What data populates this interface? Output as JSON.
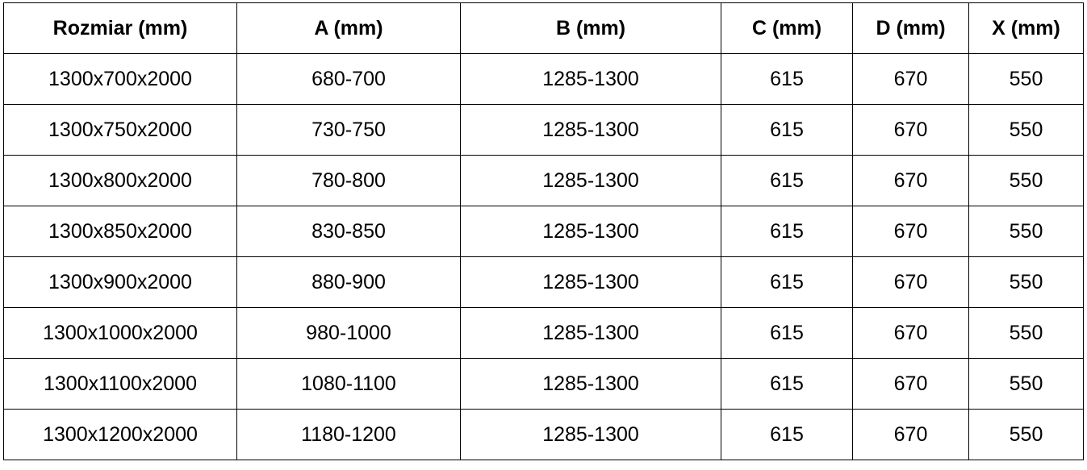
{
  "table": {
    "headers": [
      "Rozmiar (mm)",
      "A (mm)",
      "B (mm)",
      "C (mm)",
      "D (mm)",
      "X (mm)"
    ],
    "rows": [
      [
        "1300x700x2000",
        "680-700",
        "1285-1300",
        "615",
        "670",
        "550"
      ],
      [
        "1300x750x2000",
        "730-750",
        "1285-1300",
        "615",
        "670",
        "550"
      ],
      [
        "1300x800x2000",
        "780-800",
        "1285-1300",
        "615",
        "670",
        "550"
      ],
      [
        "1300x850x2000",
        "830-850",
        "1285-1300",
        "615",
        "670",
        "550"
      ],
      [
        "1300x900x2000",
        "880-900",
        "1285-1300",
        "615",
        "670",
        "550"
      ],
      [
        "1300x1000x2000",
        "980-1000",
        "1285-1300",
        "615",
        "670",
        "550"
      ],
      [
        "1300x1100x2000",
        "1080-1100",
        "1285-1300",
        "615",
        "670",
        "550"
      ],
      [
        "1300x1200x2000",
        "1180-1200",
        "1285-1300",
        "615",
        "670",
        "550"
      ]
    ]
  }
}
